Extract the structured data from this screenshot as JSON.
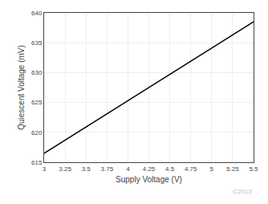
{
  "chart_data": {
    "type": "line",
    "xlabel": "Supply Voltage (V)",
    "ylabel": "Quiescent Voltage (mV)",
    "x": [
      3.0,
      5.5
    ],
    "values": [
      616.5,
      638.5
    ],
    "color": "#000000",
    "xlim": [
      3.0,
      5.5
    ],
    "ylim": [
      615,
      640
    ],
    "xticks": [
      3,
      3.25,
      3.5,
      3.75,
      4,
      4.25,
      4.5,
      4.75,
      5,
      5.25,
      5.5
    ],
    "yticks": [
      615,
      620,
      625,
      630,
      635,
      640
    ],
    "grid": true,
    "annotations": [
      "C2013"
    ]
  }
}
